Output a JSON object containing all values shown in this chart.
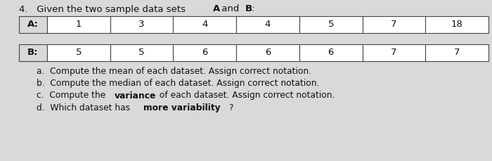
{
  "row_A_label": "A:",
  "row_A_values": [
    "1",
    "3",
    "4",
    "4",
    "5",
    "7",
    "18"
  ],
  "row_B_label": "B:",
  "row_B_values": [
    "5",
    "5",
    "6",
    "6",
    "6",
    "7",
    "7"
  ],
  "bg_color": "#d9d9d9",
  "cell_bg": "#ffffff",
  "label_bg": "#d9d9d9",
  "border_color": "#444444",
  "text_color": "#111111",
  "title_prefix": "4.   Given the two sample data sets ",
  "title_A": "A",
  "title_mid": " and ",
  "title_B": "B",
  "title_end": ":",
  "q_a_pre": "a.  Compute the mean of each dataset. Assign correct notation.",
  "q_b_pre": "b.  Compute the median of each dataset. Assign correct notation.",
  "q_c_pre": "c.  Compute the ",
  "q_c_bold": "variance",
  "q_c_suf": " of each dataset. Assign correct notation.",
  "q_d_pre": "d.  Which dataset has ",
  "q_d_bold": "more variability",
  "q_d_suf": "?"
}
